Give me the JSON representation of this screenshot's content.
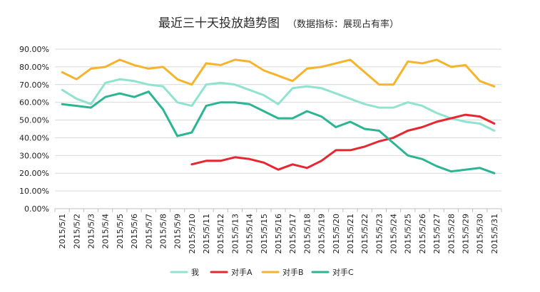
{
  "chart_data": {
    "type": "line",
    "title": "最近三十天投放趋势图",
    "subtitle": "（数据指标：展现占有率）",
    "xlabel": "",
    "ylabel": "",
    "ylim": [
      0,
      90
    ],
    "yticks": [
      0,
      10,
      20,
      30,
      40,
      50,
      60,
      70,
      80,
      90
    ],
    "ytick_labels": [
      "0.00%",
      "10.00%",
      "20.00%",
      "30.00%",
      "40.00%",
      "50.00%",
      "60.00%",
      "70.00%",
      "80.00%",
      "90.00%"
    ],
    "grid": true,
    "legend_position": "bottom",
    "categories": [
      "2015/5/1",
      "2015/5/2",
      "2015/5/3",
      "2015/5/4",
      "2015/5/5",
      "2015/5/6",
      "2015/5/7",
      "2015/5/8",
      "2015/5/9",
      "2015/5/10",
      "2015/5/11",
      "2015/5/12",
      "2015/5/13",
      "2015/5/14",
      "2015/5/15",
      "2015/5/16",
      "2015/5/17",
      "2015/5/18",
      "2015/5/19",
      "2015/5/20",
      "2015/5/21",
      "2015/5/22",
      "2015/5/23",
      "2015/5/24",
      "2015/5/25",
      "2015/5/26",
      "2015/5/27",
      "2015/5/28",
      "2015/5/29",
      "2015/5/30",
      "2015/5/31"
    ],
    "series": [
      {
        "name": "我",
        "color": "#8fe3cf",
        "values": [
          67,
          62,
          59,
          71,
          73,
          72,
          70,
          69,
          60,
          58,
          70,
          71,
          70,
          67,
          64,
          59,
          68,
          69,
          68,
          65,
          62,
          59,
          57,
          57,
          60,
          58,
          54,
          51,
          49,
          48,
          44
        ]
      },
      {
        "name": "对手A",
        "color": "#e8262f",
        "values": [
          null,
          null,
          null,
          null,
          null,
          null,
          null,
          null,
          null,
          25,
          27,
          27,
          29,
          28,
          26,
          22,
          25,
          23,
          27,
          33,
          33,
          35,
          38,
          40,
          44,
          46,
          49,
          51,
          53,
          52,
          48
        ]
      },
      {
        "name": "对手B",
        "color": "#f5b42c",
        "values": [
          77,
          73,
          79,
          80,
          84,
          81,
          79,
          80,
          73,
          70,
          82,
          81,
          84,
          83,
          78,
          75,
          72,
          79,
          80,
          82,
          84,
          77,
          70,
          70,
          83,
          82,
          84,
          80,
          81,
          72,
          69
        ]
      },
      {
        "name": "对手C",
        "color": "#2bb593",
        "values": [
          59,
          58,
          57,
          63,
          65,
          63,
          66,
          56,
          41,
          43,
          58,
          60,
          60,
          59,
          55,
          51,
          51,
          55,
          52,
          46,
          49,
          45,
          44,
          37,
          30,
          28,
          24,
          21,
          22,
          23,
          20
        ]
      }
    ]
  }
}
